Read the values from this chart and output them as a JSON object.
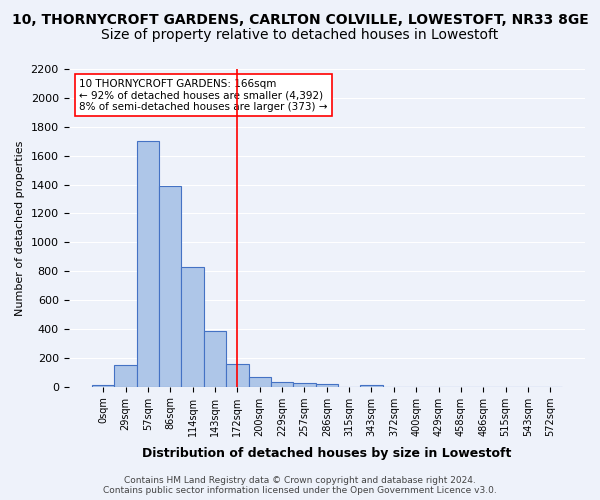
{
  "title_line1": "10, THORNYCROFT GARDENS, CARLTON COLVILLE, LOWESTOFT, NR33 8GE",
  "title_line2": "Size of property relative to detached houses in Lowestoft",
  "xlabel": "Distribution of detached houses by size in Lowestoft",
  "ylabel": "Number of detached properties",
  "footer_line1": "Contains HM Land Registry data © Crown copyright and database right 2024.",
  "footer_line2": "Contains public sector information licensed under the Open Government Licence v3.0.",
  "bin_labels": [
    "0sqm",
    "29sqm",
    "57sqm",
    "86sqm",
    "114sqm",
    "143sqm",
    "172sqm",
    "200sqm",
    "229sqm",
    "257sqm",
    "286sqm",
    "315sqm",
    "343sqm",
    "372sqm",
    "400sqm",
    "429sqm",
    "458sqm",
    "486sqm",
    "515sqm",
    "543sqm",
    "572sqm"
  ],
  "bar_values": [
    15,
    150,
    1700,
    1390,
    830,
    385,
    160,
    65,
    35,
    25,
    20,
    0,
    10,
    0,
    0,
    0,
    0,
    0,
    0,
    0,
    0
  ],
  "bar_color": "#aec6e8",
  "bar_edge_color": "#4472c4",
  "red_line_x": 6,
  "annotation_title": "10 THORNYCROFT GARDENS: 166sqm",
  "annotation_line2": "← 92% of detached houses are smaller (4,392)",
  "annotation_line3": "8% of semi-detached houses are larger (373) →",
  "ylim": [
    0,
    2200
  ],
  "yticks": [
    0,
    200,
    400,
    600,
    800,
    1000,
    1200,
    1400,
    1600,
    1800,
    2000,
    2200
  ],
  "background_color": "#eef2fa",
  "grid_color": "#ffffff",
  "title_fontsize": 10,
  "subtitle_fontsize": 10
}
